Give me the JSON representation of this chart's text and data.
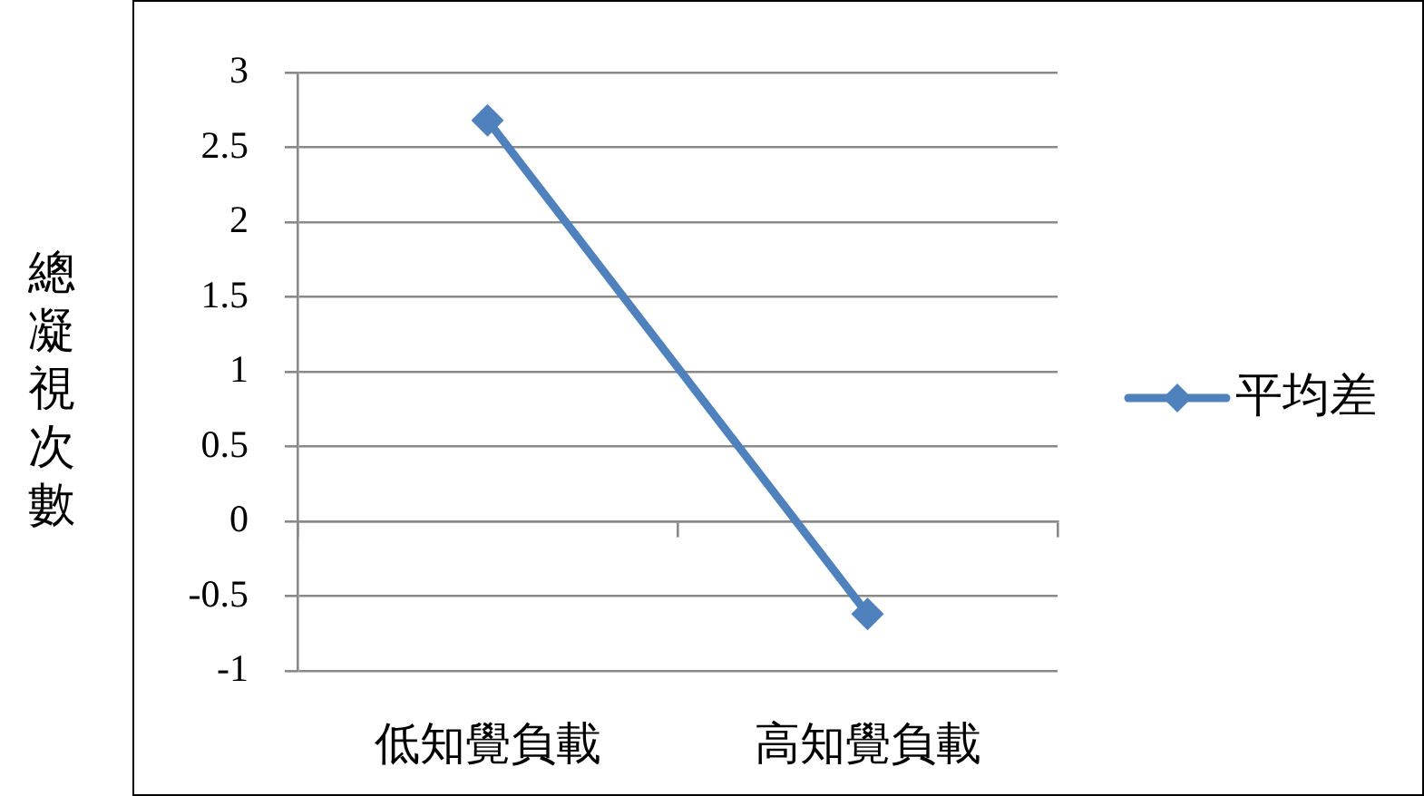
{
  "chart_data": {
    "type": "line",
    "categories": [
      "低知覺負載",
      "高知覺負載"
    ],
    "series": [
      {
        "name": "平均差",
        "color": "#4f81bd",
        "values": [
          2.68,
          -0.62
        ]
      }
    ],
    "ylabel": "總凝視次數",
    "ylim": [
      -1,
      3
    ],
    "yticks": [
      -1,
      -0.5,
      0,
      0.5,
      1,
      1.5,
      2,
      2.5,
      3
    ],
    "grid": "y",
    "legend": "right",
    "marker": "diamond",
    "line_style": "solid"
  }
}
